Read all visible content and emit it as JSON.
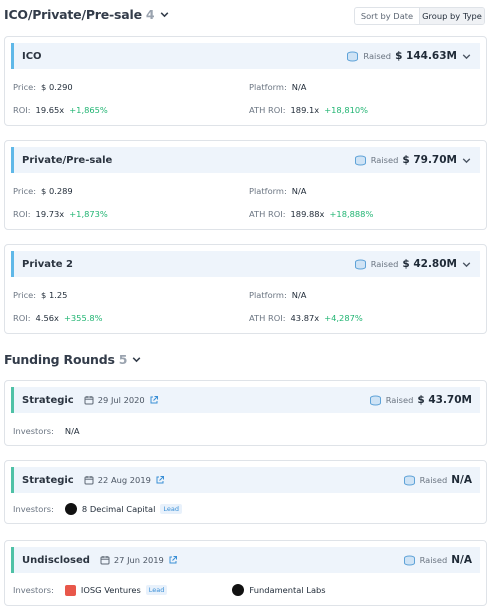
{
  "ico_section": {
    "title": "ICO/Private/Pre-sale",
    "count": "4",
    "sort_by_date": "Sort by Date",
    "group_by_type": "Group by Type",
    "cards": [
      {
        "title": "ICO",
        "raised_label": "Raised",
        "raised": "$ 144.63M",
        "price_label": "Price:",
        "price": "$ 0.290",
        "platform_label": "Platform:",
        "platform": "N/A",
        "roi_label": "ROI:",
        "roi": "19.65x",
        "roi_pct": "+1,865%",
        "ath_roi_label": "ATH ROI:",
        "ath_roi": "189.1x",
        "ath_roi_pct": "+18,810%"
      },
      {
        "title": "Private/Pre-sale",
        "raised_label": "Raised",
        "raised": "$ 79.70M",
        "price_label": "Price:",
        "price": "$ 0.289",
        "platform_label": "Platform:",
        "platform": "N/A",
        "roi_label": "ROI:",
        "roi": "19.73x",
        "roi_pct": "+1,873%",
        "ath_roi_label": "ATH ROI:",
        "ath_roi": "189.88x",
        "ath_roi_pct": "+18,888%"
      },
      {
        "title": "Private 2",
        "raised_label": "Raised",
        "raised": "$ 42.80M",
        "price_label": "Price:",
        "price": "$ 1.25",
        "platform_label": "Platform:",
        "platform": "N/A",
        "roi_label": "ROI:",
        "roi": "4.56x",
        "roi_pct": "+355.8%",
        "ath_roi_label": "ATH ROI:",
        "ath_roi": "43.87x",
        "ath_roi_pct": "+4,287%"
      }
    ]
  },
  "funding_section": {
    "title": "Funding Rounds",
    "count": "5",
    "cards": [
      {
        "title": "Strategic",
        "date": "29 Jul 2020",
        "raised_label": "Raised",
        "raised": "$ 43.70M",
        "investors_label": "Investors:",
        "investors_text": "N/A",
        "investors": []
      },
      {
        "title": "Strategic",
        "date": "22 Aug 2019",
        "raised_label": "Raised",
        "raised": "N/A",
        "investors_label": "Investors:",
        "investors": [
          {
            "name": "8 Decimal Capital",
            "lead": "Lead"
          }
        ]
      },
      {
        "title": "Undisclosed",
        "date": "27 Jun 2019",
        "raised_label": "Raised",
        "raised": "N/A",
        "investors_label": "Investors:",
        "investors": [
          {
            "name": "IOSG Ventures",
            "lead": "Lead"
          },
          {
            "name": "Fundamental Labs",
            "lead": ""
          }
        ]
      }
    ]
  },
  "icons": {
    "chevron": "chevron-down-icon",
    "coins": "coins-icon",
    "calendar": "calendar-icon",
    "external": "external-link-icon"
  },
  "colors": {
    "ico_accent": "#5fb8e8",
    "funding_accent": "#4fc1a6",
    "positive": "#22b573",
    "link": "#3a8fd6"
  }
}
